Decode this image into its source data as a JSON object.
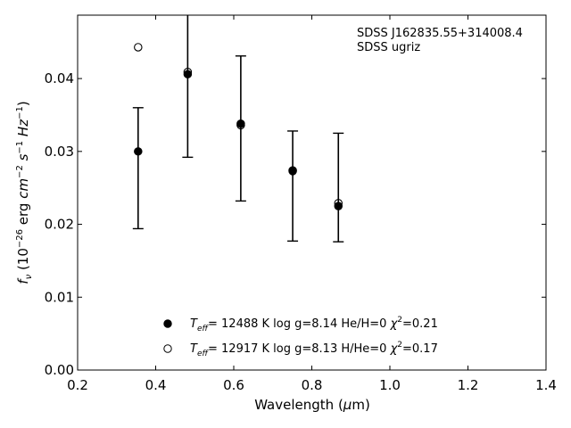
{
  "chart_data": {
    "type": "scatter",
    "xlabel_main": "Wavelength (",
    "xlabel_mu": "μ",
    "xlabel_unit": "m)",
    "ylabel_f": "f",
    "ylabel_nu": "ν",
    "ylabel_rest_open": " (10",
    "ylabel_exp1": "−26",
    "ylabel_erg": " erg ",
    "ylabel_cm": "cm",
    "ylabel_exp2": "−2",
    "ylabel_s": " s",
    "ylabel_exp3": "−1",
    "ylabel_hz": " Hz",
    "ylabel_exp4": "−1",
    "ylabel_close": ")",
    "xlim": [
      0.2,
      1.4
    ],
    "ylim": [
      0.0,
      0.0487
    ],
    "xticks": [
      {
        "value": 0.2,
        "label": "0.2"
      },
      {
        "value": 0.4,
        "label": "0.4"
      },
      {
        "value": 0.6,
        "label": "0.6"
      },
      {
        "value": 0.8,
        "label": "0.8"
      },
      {
        "value": 1.0,
        "label": "1.0"
      },
      {
        "value": 1.2,
        "label": "1.2"
      },
      {
        "value": 1.4,
        "label": "1.4"
      }
    ],
    "yticks": [
      {
        "value": 0.0,
        "label": "0.00"
      },
      {
        "value": 0.01,
        "label": "0.01"
      },
      {
        "value": 0.02,
        "label": "0.02"
      },
      {
        "value": 0.03,
        "label": "0.03"
      },
      {
        "value": 0.04,
        "label": "0.04"
      }
    ],
    "annotation_lines": [
      "SDSS J162835.55+314008.4",
      "SDSS ugriz"
    ],
    "errorbars": [
      {
        "x": 0.355,
        "y": 0.03,
        "low": 0.0194,
        "high": 0.036
      },
      {
        "x": 0.482,
        "y": 0.0406,
        "low": 0.0292,
        "high": 0.0487
      },
      {
        "x": 0.618,
        "y": 0.0338,
        "low": 0.0232,
        "high": 0.0431
      },
      {
        "x": 0.751,
        "y": 0.0274,
        "low": 0.0177,
        "high": 0.0328
      },
      {
        "x": 0.868,
        "y": 0.0225,
        "low": 0.0176,
        "high": 0.0325
      }
    ],
    "series": [
      {
        "marker": "filled-circle",
        "color": "#000000",
        "x": [
          0.355,
          0.482,
          0.618,
          0.751,
          0.868
        ],
        "y": [
          0.03,
          0.0406,
          0.0338,
          0.0274,
          0.0225
        ],
        "legend": {
          "T": "T",
          "eff": "eff",
          "text1": "= 12488 K  log g=8.14  He/H=0  ",
          "chi": "χ",
          "chi_exp": "2",
          "chi_val": "=0.21"
        }
      },
      {
        "marker": "open-circle",
        "color": "#000000",
        "x": [
          0.355,
          0.482,
          0.618,
          0.751,
          0.868
        ],
        "y": [
          0.0443,
          0.0409,
          0.0336,
          0.0273,
          0.0229
        ],
        "legend": {
          "T": "T",
          "eff": "eff",
          "text1": "= 12917 K  log g=8.13  H/He=0  ",
          "chi": "χ",
          "chi_exp": "2",
          "chi_val": "=0.17"
        }
      }
    ],
    "grid": false,
    "legend_position": "bottom-center"
  }
}
